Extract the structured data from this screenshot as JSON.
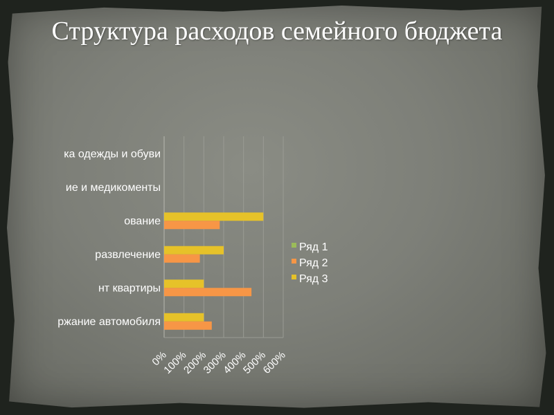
{
  "slide": {
    "title": "Структура расходов семейного бюджета"
  },
  "chart_data": {
    "type": "bar",
    "orientation": "horizontal",
    "categories": [
      "Содержание автомобиля",
      "Ремонт квартиры",
      "Отдых и развлечение",
      "Образование",
      "Лечение и медикоменты",
      "Покупка одежды и обуви"
    ],
    "category_labels_visible": [
      "ржание автомобиля",
      "нт квартиры",
      " развлечение",
      "ование",
      "ие и медикоменты",
      "ка одежды и обуви"
    ],
    "series": [
      {
        "name": "Ряд 1",
        "color": "#9bbb59",
        "values": [
          0,
          0,
          0,
          0,
          0,
          0
        ]
      },
      {
        "name": "Ряд 2",
        "color": "#f79646",
        "values": [
          240,
          440,
          180,
          280,
          0,
          0
        ]
      },
      {
        "name": "Ряд 3",
        "color": "#e6c229",
        "values": [
          200,
          200,
          300,
          500,
          0,
          0
        ]
      }
    ],
    "x_ticks": [
      "0%",
      "100%",
      "200%",
      "300%",
      "400%",
      "500%",
      "600%"
    ],
    "xlim": [
      0,
      600
    ],
    "grid": true,
    "legend": "right"
  }
}
